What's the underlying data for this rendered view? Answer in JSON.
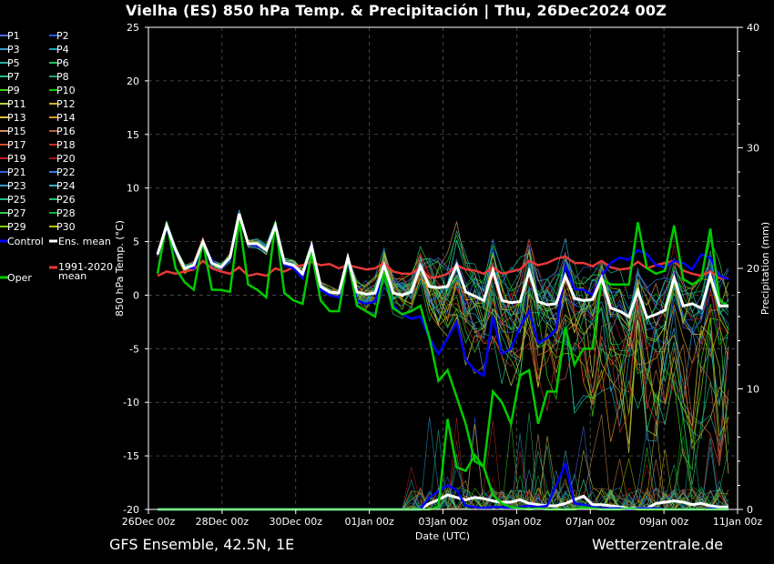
{
  "title": "Vielha  (ES)  850 hPa Temp. & Precipitación | Thu, 26Dec2024 00Z",
  "footer": {
    "left": "GFS Ensemble, 42.5N, 1E",
    "right": "Wetterzentrale.de"
  },
  "colors": {
    "background": "#000000",
    "ens_mean": "#ffffff",
    "control": "#0000ff",
    "oper": "#00cc00",
    "climate": "#e83838"
  },
  "chart_data": {
    "type": "line",
    "xlabel": "Date (UTC)",
    "ylabel": "850 hPa Temp. (°C)",
    "y2label": "Precipitation (mm)",
    "ylim": [
      -20,
      25
    ],
    "y2lim": [
      0,
      40
    ],
    "yticks": [
      "25",
      "20",
      "15",
      "10",
      "5",
      "0",
      "-5",
      "-10",
      "-15",
      "-20"
    ],
    "y2ticks": [
      "40",
      "30",
      "20",
      "10",
      "0"
    ],
    "xticks": [
      "26Dec 00z",
      "28Dec 00z",
      "30Dec 00z",
      "01Jan 00z",
      "03Jan 00z",
      "05Jan 00z",
      "07Jan 00z",
      "09Jan 00z",
      "11Jan 00z"
    ],
    "x_step_hours": 6,
    "grid": true,
    "legend": {
      "position": "left",
      "members": [
        "P1",
        "P2",
        "P3",
        "P4",
        "P5",
        "P6",
        "P7",
        "P8",
        "P9",
        "P10",
        "P11",
        "P12",
        "P13",
        "P14",
        "P15",
        "P16",
        "P17",
        "P18",
        "P19",
        "P20",
        "P21",
        "P22",
        "P23",
        "P24",
        "P25",
        "P26",
        "P27",
        "P28",
        "P29",
        "P30"
      ],
      "member_colors": [
        "#4a6cf0",
        "#2255ff",
        "#3a9ad0",
        "#1aa0c0",
        "#20b0a0",
        "#20c060",
        "#20c080",
        "#20a070",
        "#40d020",
        "#00cc00",
        "#c0d040",
        "#d0b020",
        "#e0c030",
        "#e09020",
        "#d09060",
        "#b06040",
        "#d05030",
        "#c03020",
        "#c02020",
        "#a01010",
        "#3060e0",
        "#3080e0",
        "#30a0d0",
        "#30b0c0",
        "#20c090",
        "#20c070",
        "#30d050",
        "#10b040",
        "#80d000",
        "#c0c000"
      ],
      "control": "Control",
      "ens_mean": "Ens. mean",
      "oper": "Oper",
      "climate_line1": "1991-2020",
      "climate_line2": "mean"
    },
    "series": [
      {
        "name": "Ens. mean",
        "values": [
          3.8,
          6.5,
          4.2,
          2.5,
          2.8,
          5,
          3,
          2.6,
          3.5,
          7.6,
          4.8,
          4.8,
          4.2,
          6.5,
          3,
          2.8,
          2,
          4.6,
          0.8,
          0.3,
          0.2,
          3.5,
          0.3,
          0.1,
          0.2,
          2.8,
          0.2,
          0,
          0.3,
          2.7,
          0.8,
          0.7,
          0.8,
          2.8,
          0.3,
          -0.1,
          -0.5,
          2.3,
          -0.5,
          -0.7,
          -0.6,
          2.2,
          -0.6,
          -0.9,
          -0.8,
          1.8,
          -0.3,
          -0.5,
          -0.4,
          1.6,
          -1.2,
          -1.5,
          -2,
          0.4,
          -2.1,
          -1.8,
          -1.4,
          1.6,
          -1,
          -0.8,
          -1.2,
          1.8,
          -1,
          -1
        ]
      },
      {
        "name": "Control",
        "values": [
          4,
          6.2,
          4,
          2.6,
          2.5,
          5,
          3.2,
          2.5,
          3.4,
          7.4,
          4.8,
          4.6,
          4.2,
          6.3,
          2.8,
          2.5,
          1.6,
          4.8,
          0.5,
          0,
          -0.2,
          3,
          -0.5,
          -0.8,
          -0.6,
          2.4,
          -1,
          -1.8,
          -2.2,
          -2,
          -4,
          -5.5,
          -4,
          -2.5,
          -6,
          -7,
          -7.5,
          -2,
          -5.5,
          -5,
          -3,
          -1.5,
          -4.5,
          -4,
          -3.2,
          2.8,
          0.6,
          0.5,
          0,
          1.8,
          3,
          3.5,
          3.3,
          4.2,
          3.8,
          2.8,
          2.6,
          3.2,
          3,
          2.4,
          3.8,
          3.5,
          1.8,
          1.5
        ]
      },
      {
        "name": "Oper",
        "values": [
          2,
          6.8,
          2.5,
          1.2,
          0.5,
          5,
          0.5,
          0.5,
          0.3,
          7,
          1,
          0.5,
          -0.2,
          6.8,
          0.2,
          -0.5,
          -0.8,
          4,
          -0.5,
          -1.5,
          -1.5,
          3.4,
          -1,
          -1.5,
          -2,
          2.2,
          -1.2,
          -1.8,
          -1.5,
          -1,
          -4,
          -8,
          -7,
          -9.5,
          -12,
          -15.5,
          -16,
          -9,
          -10,
          -12,
          -7.5,
          -7,
          -12,
          -9,
          -9,
          -3,
          -6.5,
          -5,
          -5,
          1.5,
          1,
          1,
          1,
          6.8,
          2.5,
          2,
          2.3,
          6.5,
          1.5,
          1,
          1.5,
          6.2,
          -0.5,
          -1
        ]
      },
      {
        "name": "1991-2020 mean",
        "values": [
          1.8,
          2.2,
          2,
          2.2,
          2.4,
          3.2,
          2.5,
          2.2,
          2,
          2.6,
          1.8,
          2,
          1.8,
          2.5,
          2.2,
          2.6,
          2.8,
          3.1,
          2.8,
          2.9,
          2.5,
          2.8,
          2.6,
          2.4,
          2.5,
          3,
          2.2,
          2,
          2,
          2.6,
          1.6,
          1.7,
          2,
          2.8,
          2.4,
          2.3,
          2,
          2.6,
          2,
          2.2,
          2.4,
          3.2,
          2.8,
          3,
          3.4,
          3.6,
          3,
          3,
          2.7,
          3.2,
          2.6,
          2.4,
          2.5,
          3.1,
          2.5,
          2.8,
          3,
          3.2,
          2.3,
          2,
          1.8,
          2.2,
          1.6,
          1.6
        ]
      }
    ],
    "precipitation": [
      {
        "name": "Ens. mean",
        "values": [
          0,
          0,
          0,
          0,
          0,
          0,
          0,
          0,
          0,
          0,
          0,
          0,
          0,
          0,
          0,
          0,
          0,
          0,
          0,
          0,
          0,
          0,
          0,
          0,
          0,
          0,
          0,
          0,
          0,
          0,
          0.5,
          0.8,
          1.2,
          1,
          0.8,
          1,
          0.9,
          0.7,
          0.6,
          0.6,
          0.8,
          0.5,
          0.4,
          0.3,
          0.3,
          0.5,
          0.8,
          1.1,
          0.4,
          0.4,
          0.3,
          0.2,
          0.1,
          0.1,
          0.1,
          0.5,
          0.6,
          0.7,
          0.6,
          0.4,
          0.5,
          0.3,
          0.2,
          0.2
        ]
      },
      {
        "name": "Control",
        "values": [
          0,
          0,
          0,
          0,
          0,
          0,
          0,
          0,
          0,
          0,
          0,
          0,
          0,
          0,
          0,
          0,
          0,
          0,
          0,
          0,
          0,
          0,
          0,
          0,
          0,
          0,
          0,
          0,
          0,
          0,
          1,
          1.5,
          2,
          1.6,
          0.3,
          0.2,
          0.1,
          0.2,
          0.2,
          0.1,
          0.2,
          0.3,
          0.2,
          0.3,
          2,
          3.8,
          0.5,
          0.4,
          0.2,
          0.1,
          0.1,
          0.1,
          0,
          0.1,
          0.1,
          0.1,
          0,
          0,
          0,
          0,
          0,
          0.1,
          0,
          0
        ]
      },
      {
        "name": "Oper",
        "values": [
          0,
          0,
          0,
          0,
          0,
          0,
          0,
          0,
          0,
          0,
          0,
          0,
          0,
          0,
          0,
          0,
          0,
          0,
          0,
          0,
          0,
          0,
          0,
          0,
          0,
          0,
          0,
          0,
          0,
          0,
          0,
          0.2,
          7.5,
          3.5,
          3.2,
          4.5,
          3.5,
          1.2,
          0.5,
          0.2,
          0.1,
          0,
          0.1,
          0,
          0,
          0,
          0,
          0.2,
          0.1,
          0,
          0,
          0,
          0.1,
          0,
          0,
          0,
          0,
          0,
          0,
          0,
          0,
          0,
          0,
          0
        ]
      }
    ]
  }
}
